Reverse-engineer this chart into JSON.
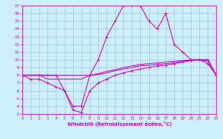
{
  "background_color": "#cceeff",
  "grid_color": "#99cccc",
  "line_color": "#cc00cc",
  "xlim": [
    0,
    23
  ],
  "ylim": [
    3,
    17
  ],
  "yticks": [
    3,
    4,
    5,
    6,
    7,
    8,
    9,
    10,
    11,
    12,
    13,
    14,
    15,
    16,
    17
  ],
  "xticks": [
    0,
    1,
    2,
    3,
    4,
    5,
    6,
    7,
    8,
    9,
    10,
    11,
    12,
    13,
    14,
    15,
    16,
    17,
    18,
    19,
    20,
    21,
    22,
    23
  ],
  "xlabel": "Windchill (Refroidissement éolien,°C)",
  "line1_x": [
    0,
    1,
    2,
    3,
    4,
    5,
    6,
    7,
    8,
    9,
    10,
    11,
    12,
    13,
    14,
    15,
    16,
    17,
    18,
    19,
    20,
    21,
    22,
    23
  ],
  "line1_y": [
    8,
    8,
    8,
    8,
    8,
    6,
    4,
    4,
    8,
    10,
    13,
    15,
    17,
    17,
    17,
    15,
    14,
    16,
    12,
    11,
    10,
    10,
    10,
    8
  ],
  "line2_x": [
    0,
    1,
    2,
    3,
    4,
    5,
    6,
    7,
    8,
    9,
    10,
    11,
    12,
    13,
    14,
    15,
    16,
    17,
    18,
    19,
    20,
    21,
    22,
    23
  ],
  "line2_y": [
    8,
    8,
    8,
    8,
    8,
    8,
    8,
    8,
    8,
    8.2,
    8.5,
    8.7,
    9.0,
    9.2,
    9.4,
    9.5,
    9.6,
    9.7,
    9.8,
    9.9,
    10,
    10,
    10,
    8
  ],
  "line3_x": [
    0,
    1,
    2,
    3,
    4,
    5,
    6,
    7,
    8,
    9,
    10,
    11,
    12,
    13,
    14,
    15,
    16,
    17,
    18,
    19,
    20,
    21,
    22,
    23
  ],
  "line3_y": [
    8,
    8,
    8,
    7.5,
    7.5,
    7.5,
    7.5,
    7.5,
    8,
    8.1,
    8.3,
    8.6,
    8.8,
    9.0,
    9.2,
    9.3,
    9.4,
    9.5,
    9.6,
    9.8,
    9.9,
    10,
    9.8,
    8
  ],
  "line4_x": [
    0,
    1,
    2,
    3,
    4,
    5,
    6,
    7,
    8,
    9,
    10,
    11,
    12,
    13,
    14,
    15,
    16,
    17,
    18,
    19,
    20,
    21,
    22,
    23
  ],
  "line4_y": [
    8,
    7.5,
    7.5,
    7,
    6.5,
    6,
    3.5,
    3.2,
    6,
    7,
    7.5,
    8,
    8.3,
    8.6,
    8.8,
    9.0,
    9.2,
    9.3,
    9.5,
    9.7,
    9.9,
    10,
    9.5,
    8
  ]
}
